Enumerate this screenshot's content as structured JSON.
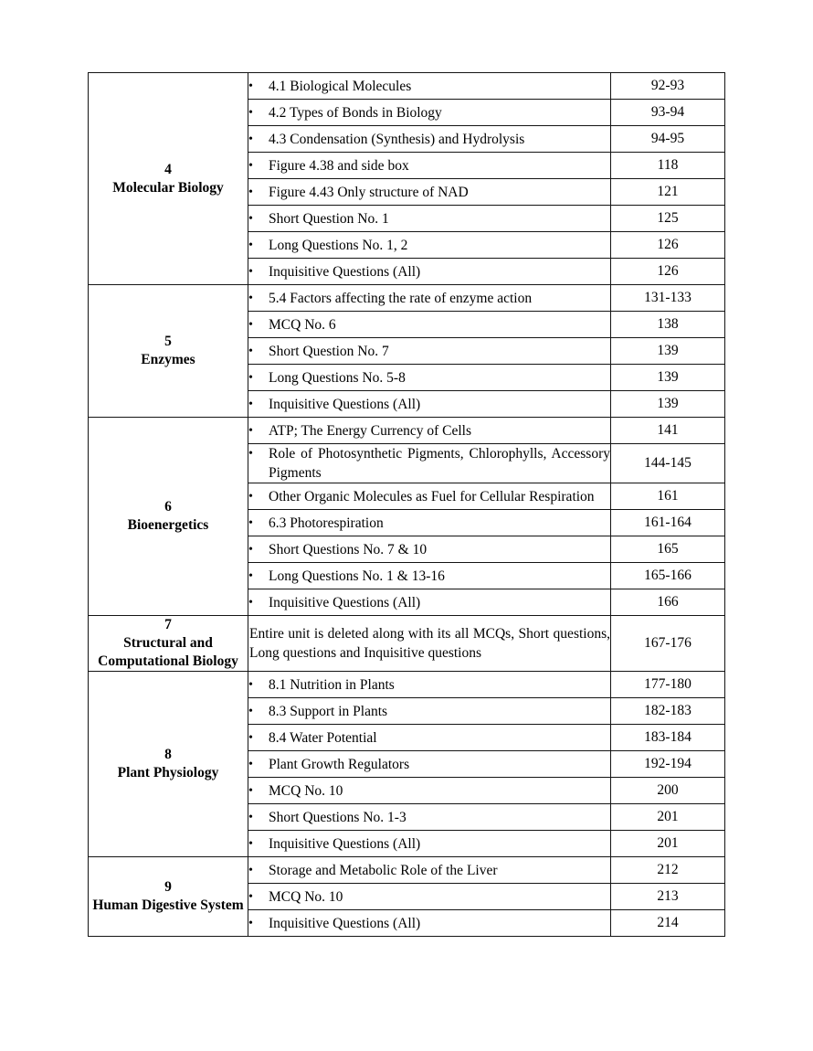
{
  "document": {
    "background_color": "#ffffff",
    "text_color": "#000000",
    "border_color": "#141414"
  },
  "table": {
    "bullet_icon": "•",
    "columns": [
      "unit",
      "deleted_topics",
      "page_numbers"
    ],
    "sections": [
      {
        "unit_number": "4",
        "unit_name": "Molecular Biology",
        "rows": [
          {
            "bullet": true,
            "topic": "4.1 Biological Molecules",
            "pages": "92-93"
          },
          {
            "bullet": true,
            "topic": "4.2 Types of Bonds in Biology",
            "pages": "93-94"
          },
          {
            "bullet": true,
            "topic": "4.3 Condensation (Synthesis) and Hydrolysis",
            "pages": "94-95"
          },
          {
            "bullet": true,
            "topic": "Figure 4.38 and side box",
            "pages": "118"
          },
          {
            "bullet": true,
            "topic": "Figure 4.43 Only structure of NAD",
            "pages": "121"
          },
          {
            "bullet": true,
            "topic": "Short Question No. 1",
            "pages": "125"
          },
          {
            "bullet": true,
            "topic": "Long Questions No. 1, 2",
            "pages": "126"
          },
          {
            "bullet": true,
            "topic": "Inquisitive Questions (All)",
            "pages": "126"
          }
        ]
      },
      {
        "unit_number": "5",
        "unit_name": "Enzymes",
        "rows": [
          {
            "bullet": true,
            "topic": "5.4 Factors affecting the rate of enzyme action",
            "pages": "131-133"
          },
          {
            "bullet": true,
            "topic": "MCQ No. 6",
            "pages": "138"
          },
          {
            "bullet": true,
            "topic": "Short Question No. 7",
            "pages": "139"
          },
          {
            "bullet": true,
            "topic": "Long Questions No. 5-8",
            "pages": "139"
          },
          {
            "bullet": true,
            "topic": "Inquisitive Questions (All)",
            "pages": "139"
          }
        ]
      },
      {
        "unit_number": "6",
        "unit_name": "Bioenergetics",
        "rows": [
          {
            "bullet": true,
            "topic": "ATP; The Energy Currency of Cells",
            "pages": "141"
          },
          {
            "bullet": true,
            "topic": "Role of Photosynthetic Pigments, Chlorophylls, Accessory Pigments",
            "pages": "144-145"
          },
          {
            "bullet": true,
            "topic": "Other Organic Molecules as Fuel for Cellular Respiration",
            "pages": "161"
          },
          {
            "bullet": true,
            "topic": "6.3 Photorespiration",
            "pages": "161-164"
          },
          {
            "bullet": true,
            "topic": "Short Questions No. 7 & 10",
            "pages": "165"
          },
          {
            "bullet": true,
            "topic": "Long Questions No. 1 & 13-16",
            "pages": "165-166"
          },
          {
            "bullet": true,
            "topic": "Inquisitive Questions (All)",
            "pages": "166"
          }
        ]
      },
      {
        "unit_number": "7",
        "unit_name": "Structural and Computational Biology",
        "rows": [
          {
            "bullet": false,
            "topic": "Entire unit is deleted along with its all MCQs, Short questions, Long questions and Inquisitive questions",
            "pages": "167-176"
          }
        ]
      },
      {
        "unit_number": "8",
        "unit_name": "Plant Physiology",
        "rows": [
          {
            "bullet": true,
            "topic": "8.1 Nutrition in Plants",
            "pages": "177-180"
          },
          {
            "bullet": true,
            "topic": "8.3 Support in Plants",
            "pages": "182-183"
          },
          {
            "bullet": true,
            "topic": "8.4 Water Potential",
            "pages": "183-184"
          },
          {
            "bullet": true,
            "topic": "Plant Growth Regulators",
            "pages": "192-194"
          },
          {
            "bullet": true,
            "topic": "MCQ No. 10",
            "pages": "200"
          },
          {
            "bullet": true,
            "topic": "Short Questions No. 1-3",
            "pages": "201"
          },
          {
            "bullet": true,
            "topic": "Inquisitive Questions (All)",
            "pages": "201"
          }
        ]
      },
      {
        "unit_number": "9",
        "unit_name": "Human Digestive System",
        "rows": [
          {
            "bullet": true,
            "topic": "Storage and Metabolic Role of the Liver",
            "pages": "212"
          },
          {
            "bullet": true,
            "topic": "MCQ No. 10",
            "pages": "213"
          },
          {
            "bullet": true,
            "topic": "Inquisitive Questions (All)",
            "pages": "214"
          }
        ]
      }
    ]
  }
}
